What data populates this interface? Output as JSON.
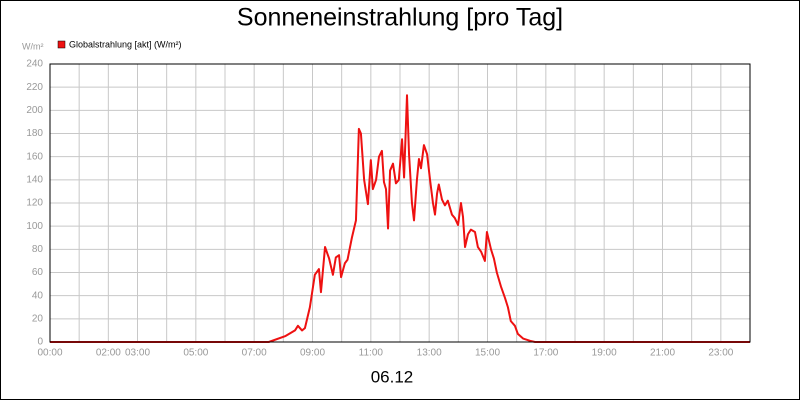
{
  "chart_data": {
    "type": "line",
    "title": "Sonneneinstrahlung [pro Tag]",
    "y_unit": "W/m²",
    "x_label": "06.12",
    "legend": "top-left",
    "grid": true,
    "x": [
      0,
      7.5,
      8.06,
      8.4,
      8.5,
      8.64,
      8.74,
      8.91,
      9.08,
      9.22,
      9.29,
      9.43,
      9.57,
      9.7,
      9.8,
      9.91,
      9.98,
      10.11,
      10.2,
      10.35,
      10.49,
      10.59,
      10.66,
      10.77,
      10.9,
      11.0,
      11.07,
      11.18,
      11.28,
      11.38,
      11.45,
      11.52,
      11.59,
      11.66,
      11.76,
      11.86,
      11.96,
      12.07,
      12.14,
      12.24,
      12.31,
      12.41,
      12.48,
      12.58,
      12.65,
      12.72,
      12.82,
      12.93,
      13.03,
      13.13,
      13.2,
      13.27,
      13.33,
      13.44,
      13.54,
      13.64,
      13.78,
      13.88,
      13.99,
      14.09,
      14.16,
      14.23,
      14.33,
      14.43,
      14.57,
      14.67,
      14.78,
      14.91,
      14.98,
      15.12,
      15.22,
      15.32,
      15.46,
      15.6,
      15.7,
      15.8,
      15.94,
      16.04,
      16.22,
      16.46,
      16.63,
      24
    ],
    "series": [
      {
        "name": "Globalstrahlung [akt] (W/m²)",
        "color": "#ee1111",
        "values": [
          0,
          0,
          5,
          10,
          14,
          10,
          12,
          30,
          58,
          63,
          43,
          82,
          72,
          58,
          73,
          75,
          56,
          68,
          71,
          90,
          105,
          184,
          180,
          140,
          119,
          157,
          132,
          140,
          160,
          165,
          138,
          132,
          98,
          148,
          154,
          137,
          140,
          175,
          142,
          213,
          162,
          120,
          105,
          140,
          158,
          150,
          170,
          162,
          140,
          120,
          110,
          128,
          136,
          123,
          118,
          122,
          110,
          107,
          101,
          120,
          108,
          82,
          93,
          97,
          95,
          82,
          78,
          70,
          95,
          80,
          72,
          60,
          48,
          38,
          30,
          18,
          14,
          7,
          3,
          1,
          0,
          0
        ]
      }
    ],
    "xlim": [
      0,
      24
    ],
    "xticks": [
      {
        "value": 0,
        "label": "00:00"
      },
      {
        "value": 1,
        "label": null
      },
      {
        "value": 2,
        "label": "02:00"
      },
      {
        "value": 3,
        "label": "03:00"
      },
      {
        "value": 4,
        "label": null
      },
      {
        "value": 5,
        "label": "05:00"
      },
      {
        "value": 6,
        "label": null
      },
      {
        "value": 7,
        "label": "07:00"
      },
      {
        "value": 8,
        "label": null
      },
      {
        "value": 9,
        "label": "09:00"
      },
      {
        "value": 10,
        "label": null
      },
      {
        "value": 11,
        "label": "11:00"
      },
      {
        "value": 12,
        "label": null
      },
      {
        "value": 13,
        "label": "13:00"
      },
      {
        "value": 14,
        "label": null
      },
      {
        "value": 15,
        "label": "15:00"
      },
      {
        "value": 16,
        "label": null
      },
      {
        "value": 17,
        "label": "17:00"
      },
      {
        "value": 18,
        "label": null
      },
      {
        "value": 19,
        "label": "19:00"
      },
      {
        "value": 20,
        "label": null
      },
      {
        "value": 21,
        "label": "21:00"
      },
      {
        "value": 22,
        "label": null
      },
      {
        "value": 23,
        "label": "23:00"
      }
    ],
    "ylim": [
      0,
      240
    ],
    "yticks": [
      0,
      20,
      40,
      60,
      80,
      100,
      120,
      140,
      160,
      180,
      200,
      220,
      240
    ]
  }
}
